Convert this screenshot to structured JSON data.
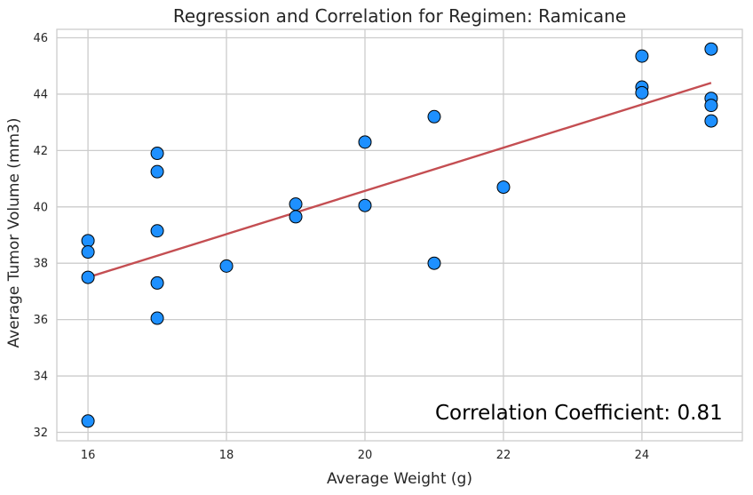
{
  "chart_data": {
    "type": "scatter",
    "title": "Regression and Correlation for Regimen: Ramicane",
    "xlabel": "Average Weight (g)",
    "ylabel": "Average Tumor Volume (mm3)",
    "xlim": [
      15.55,
      25.45
    ],
    "ylim": [
      31.7,
      46.3
    ],
    "xticks": [
      16,
      18,
      20,
      22,
      24
    ],
    "yticks": [
      32,
      34,
      36,
      38,
      40,
      42,
      44,
      46
    ],
    "grid": true,
    "points": [
      {
        "x": 16,
        "y": 38.8
      },
      {
        "x": 16,
        "y": 38.4
      },
      {
        "x": 16,
        "y": 37.5
      },
      {
        "x": 16,
        "y": 32.4
      },
      {
        "x": 17,
        "y": 41.9
      },
      {
        "x": 17,
        "y": 41.25
      },
      {
        "x": 17,
        "y": 39.15
      },
      {
        "x": 17,
        "y": 37.3
      },
      {
        "x": 17,
        "y": 36.05
      },
      {
        "x": 18,
        "y": 37.9
      },
      {
        "x": 19,
        "y": 40.1
      },
      {
        "x": 19,
        "y": 39.65
      },
      {
        "x": 20,
        "y": 42.3
      },
      {
        "x": 20,
        "y": 40.05
      },
      {
        "x": 21,
        "y": 43.2
      },
      {
        "x": 21,
        "y": 38.0
      },
      {
        "x": 22,
        "y": 40.7
      },
      {
        "x": 24,
        "y": 45.35
      },
      {
        "x": 24,
        "y": 44.25
      },
      {
        "x": 24,
        "y": 44.05
      },
      {
        "x": 25,
        "y": 45.6
      },
      {
        "x": 25,
        "y": 43.85
      },
      {
        "x": 25,
        "y": 43.6
      },
      {
        "x": 25,
        "y": 43.05
      }
    ],
    "regression": {
      "x": [
        16,
        25
      ],
      "y": [
        37.5,
        44.4
      ]
    },
    "annotation": "Correlation Coefficient: 0.81",
    "colors": {
      "point_fill": "#1e90ff",
      "point_edge": "#000000",
      "regression_line": "#c44e52",
      "grid": "#cccccc",
      "frame": "#cccccc"
    }
  }
}
